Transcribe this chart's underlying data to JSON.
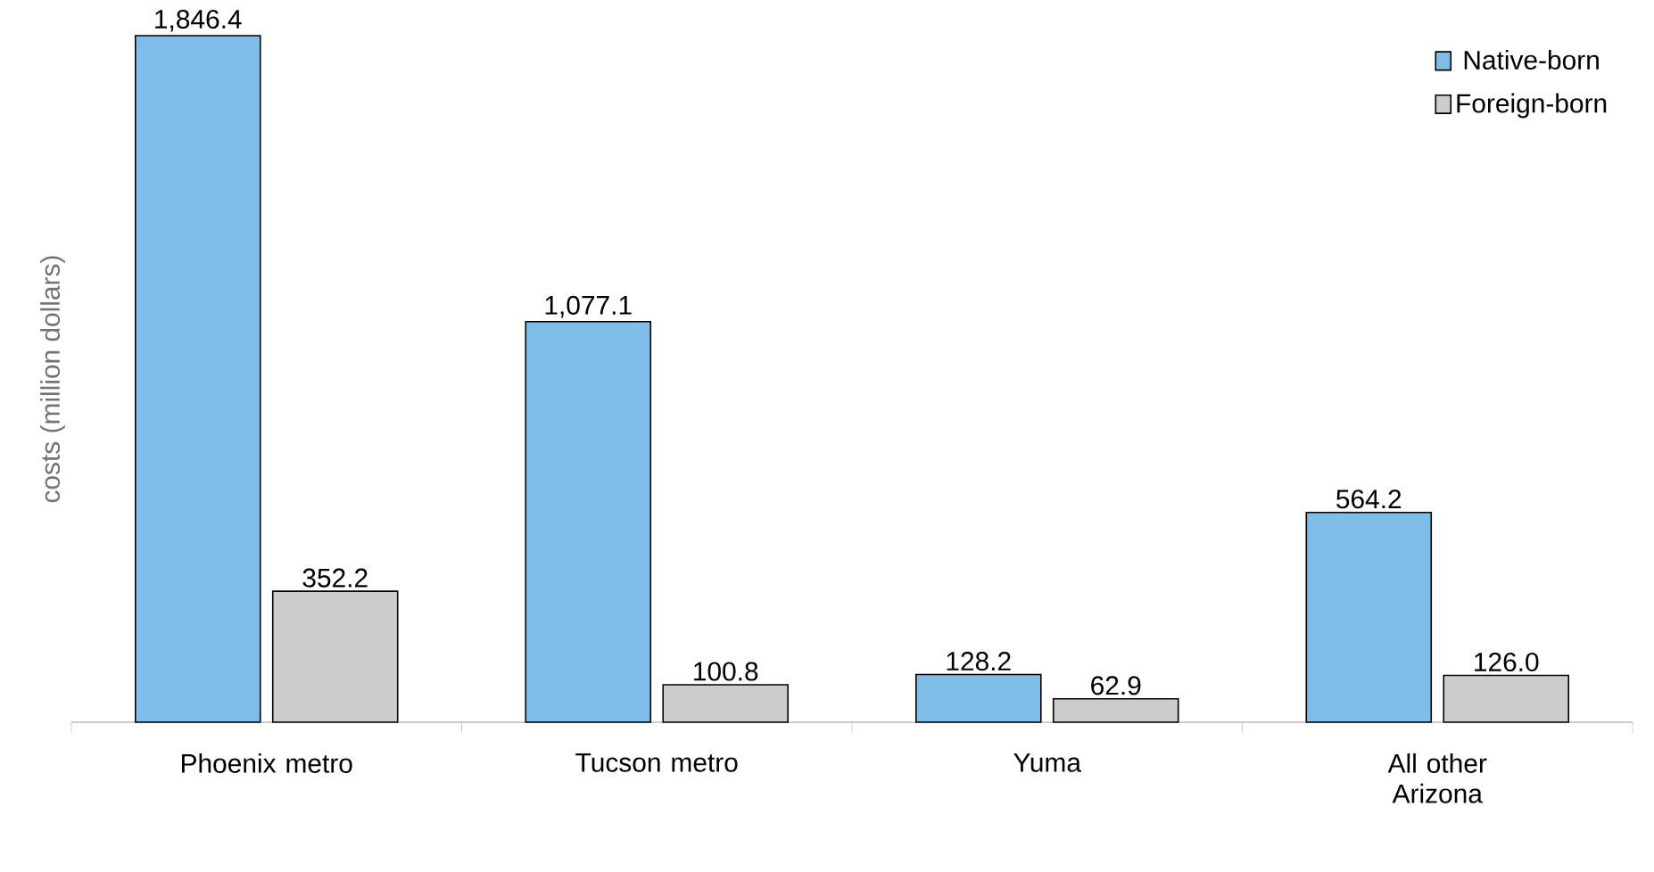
{
  "chart_data": {
    "type": "bar",
    "ylabel": "costs (million dollars)",
    "categories": [
      "Phoenix metro",
      "Tucson metro",
      "Yuma",
      "All other Arizona"
    ],
    "series": [
      {
        "name": "Native-born",
        "color": "#7dbde8",
        "values": [
          1846.4,
          1077.1,
          128.2,
          564.2
        ],
        "value_labels": [
          "1,846.4",
          "1,077.1",
          "128.2",
          "564.2"
        ]
      },
      {
        "name": "Foreign-born",
        "color": "#cccccc",
        "values": [
          352.2,
          100.8,
          62.9,
          126.0
        ],
        "value_labels": [
          "352.2",
          "100.8",
          "62.9",
          "126.0"
        ]
      }
    ],
    "legend": "top right",
    "relative": false
  }
}
